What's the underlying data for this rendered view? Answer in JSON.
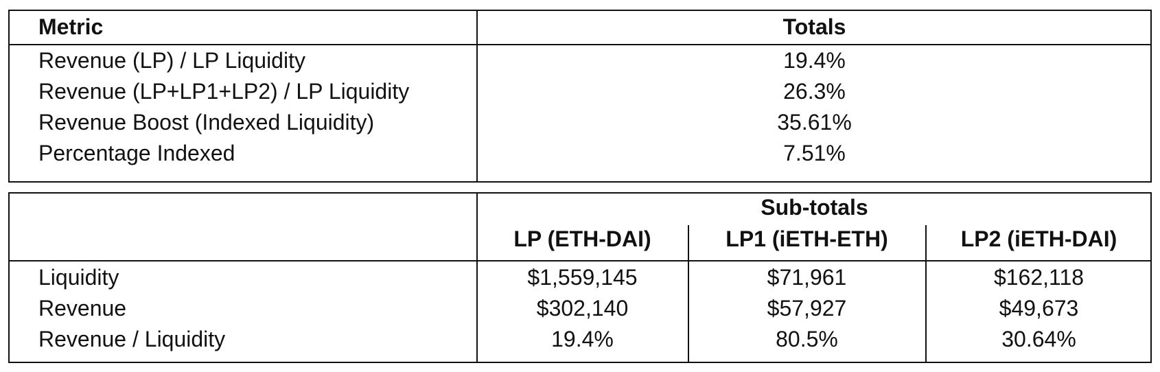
{
  "totals_table": {
    "header": {
      "metric": "Metric",
      "totals": "Totals"
    },
    "rows": [
      {
        "metric": "Revenue (LP) / LP Liquidity",
        "value": "19.4%"
      },
      {
        "metric": "Revenue (LP+LP1+LP2) / LP Liquidity",
        "value": "26.3%"
      },
      {
        "metric": "Revenue Boost (Indexed Liquidity)",
        "value": "35.61%"
      },
      {
        "metric": "Percentage Indexed",
        "value": "7.51%"
      }
    ]
  },
  "subtotals_table": {
    "group_header": "Sub-totals",
    "columns": [
      "LP (ETH-DAI)",
      "LP1 (iETH-ETH)",
      "LP2 (iETH-DAI)"
    ],
    "rows": [
      {
        "metric": "Liquidity",
        "values": [
          "$1,559,145",
          "$71,961",
          "$162,118"
        ]
      },
      {
        "metric": "Revenue",
        "values": [
          "$302,140",
          "$57,927",
          "$49,673"
        ]
      },
      {
        "metric": "Revenue / Liquidity",
        "values": [
          "19.4%",
          "80.5%",
          "30.64%"
        ]
      }
    ]
  }
}
